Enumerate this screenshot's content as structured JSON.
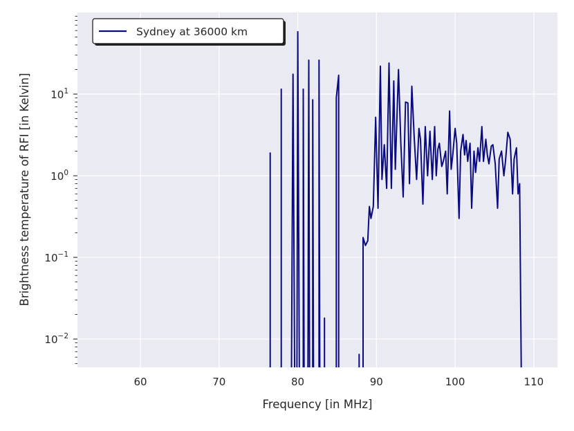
{
  "chart_data": {
    "type": "line",
    "title": "",
    "xlabel": "Frequency [in MHz]",
    "ylabel": "Brightness temperature of RFI [in Kelvin]",
    "xlim": [
      52,
      113
    ],
    "ylim": [
      0.0045,
      100
    ],
    "yscale": "log",
    "grid": true,
    "legend_position": "top-left",
    "xticks": [
      {
        "value": 60,
        "label": "60"
      },
      {
        "value": 70,
        "label": "70"
      },
      {
        "value": 80,
        "label": "80"
      },
      {
        "value": 90,
        "label": "90"
      },
      {
        "value": 100,
        "label": "100"
      },
      {
        "value": 110,
        "label": "110"
      }
    ],
    "yticks": [
      {
        "value": 0.01,
        "base": "10",
        "exp": "−2"
      },
      {
        "value": 0.1,
        "base": "10",
        "exp": "−1"
      },
      {
        "value": 1,
        "base": "10",
        "exp": "0"
      },
      {
        "value": 10,
        "base": "10",
        "exp": "1"
      }
    ],
    "series": [
      {
        "name": "Sydney at 36000 km",
        "color": "#0a0a80",
        "segments": [
          [
            [
              76.5,
              0.001
            ],
            [
              76.5,
              1.9
            ],
            [
              76.5,
              0.001
            ]
          ],
          [
            [
              77.9,
              0.001
            ],
            [
              77.9,
              11.5
            ],
            [
              77.9,
              0.001
            ]
          ],
          [
            [
              79.2,
              0.001
            ],
            [
              79.4,
              17.5
            ],
            [
              79.6,
              0.001
            ]
          ],
          [
            [
              79.9,
              0.001
            ],
            [
              80.0,
              58
            ],
            [
              80.2,
              0.001
            ]
          ],
          [
            [
              80.7,
              0.001
            ],
            [
              80.7,
              11.5
            ],
            [
              80.8,
              0.001
            ]
          ],
          [
            [
              81.3,
              0.001
            ],
            [
              81.4,
              26
            ],
            [
              81.5,
              0.001
            ]
          ],
          [
            [
              81.9,
              0.001
            ],
            [
              81.9,
              8.5
            ],
            [
              82.0,
              0.001
            ]
          ],
          [
            [
              82.7,
              0.001
            ],
            [
              82.7,
              26
            ],
            [
              82.8,
              0.001
            ]
          ],
          [
            [
              83.4,
              0.001
            ],
            [
              83.4,
              0.018
            ],
            [
              83.4,
              0.001
            ]
          ],
          [
            [
              84.9,
              0.001
            ],
            [
              84.9,
              9.0
            ],
            [
              85.2,
              17
            ],
            [
              85.2,
              0.001
            ]
          ],
          [
            [
              87.8,
              0.001
            ],
            [
              87.8,
              0.0065
            ],
            [
              87.8,
              0.001
            ]
          ],
          [
            [
              88.3,
              0.001
            ],
            [
              88.3,
              0.175
            ],
            [
              88.6,
              0.14
            ],
            [
              88.9,
              0.16
            ],
            [
              89.1,
              0.42
            ],
            [
              89.3,
              0.3
            ],
            [
              89.6,
              0.42
            ],
            [
              89.9,
              5.2
            ],
            [
              90.2,
              0.4
            ],
            [
              90.5,
              22
            ],
            [
              90.7,
              0.9
            ],
            [
              91.0,
              2.4
            ],
            [
              91.3,
              0.7
            ],
            [
              91.6,
              24
            ],
            [
              91.9,
              0.7
            ],
            [
              92.2,
              14.5
            ],
            [
              92.4,
              1.2
            ],
            [
              92.8,
              20
            ],
            [
              93.1,
              2.5
            ],
            [
              93.4,
              0.55
            ],
            [
              93.7,
              8.0
            ],
            [
              94.0,
              7.8
            ],
            [
              94.2,
              0.8
            ],
            [
              94.5,
              12.5
            ],
            [
              94.8,
              3.0
            ],
            [
              95.1,
              0.9
            ],
            [
              95.4,
              3.8
            ],
            [
              95.6,
              2.8
            ],
            [
              95.9,
              0.45
            ],
            [
              96.2,
              4.0
            ],
            [
              96.5,
              1.0
            ],
            [
              96.8,
              3.5
            ],
            [
              97.1,
              0.9
            ],
            [
              97.4,
              4.0
            ],
            [
              97.6,
              1.0
            ],
            [
              97.8,
              2.1
            ],
            [
              98.0,
              2.5
            ],
            [
              98.3,
              1.3
            ],
            [
              98.5,
              1.5
            ],
            [
              98.8,
              2.0
            ],
            [
              99.0,
              0.6
            ],
            [
              99.3,
              6.2
            ],
            [
              99.5,
              1.2
            ],
            [
              99.7,
              1.8
            ],
            [
              100.0,
              3.8
            ],
            [
              100.2,
              2.5
            ],
            [
              100.5,
              0.3
            ],
            [
              100.7,
              2.0
            ],
            [
              101.0,
              3.2
            ],
            [
              101.2,
              1.8
            ],
            [
              101.4,
              2.7
            ],
            [
              101.6,
              1.5
            ],
            [
              101.9,
              2.5
            ],
            [
              102.1,
              0.4
            ],
            [
              102.4,
              2.0
            ],
            [
              102.6,
              1.1
            ],
            [
              102.9,
              2.2
            ],
            [
              103.1,
              1.5
            ],
            [
              103.4,
              4.0
            ],
            [
              103.6,
              1.5
            ],
            [
              103.9,
              2.8
            ],
            [
              104.1,
              1.8
            ],
            [
              104.3,
              1.4
            ],
            [
              104.6,
              2.3
            ],
            [
              104.8,
              2.4
            ],
            [
              105.1,
              1.4
            ],
            [
              105.4,
              0.4
            ],
            [
              105.6,
              1.6
            ],
            [
              105.9,
              2.0
            ],
            [
              106.2,
              1.0
            ],
            [
              106.4,
              1.5
            ],
            [
              106.7,
              3.4
            ],
            [
              107.0,
              2.8
            ],
            [
              107.3,
              0.6
            ],
            [
              107.5,
              1.6
            ],
            [
              107.8,
              2.2
            ],
            [
              108.0,
              0.6
            ],
            [
              108.2,
              0.8
            ],
            [
              108.4,
              0.001
            ]
          ]
        ]
      }
    ]
  }
}
